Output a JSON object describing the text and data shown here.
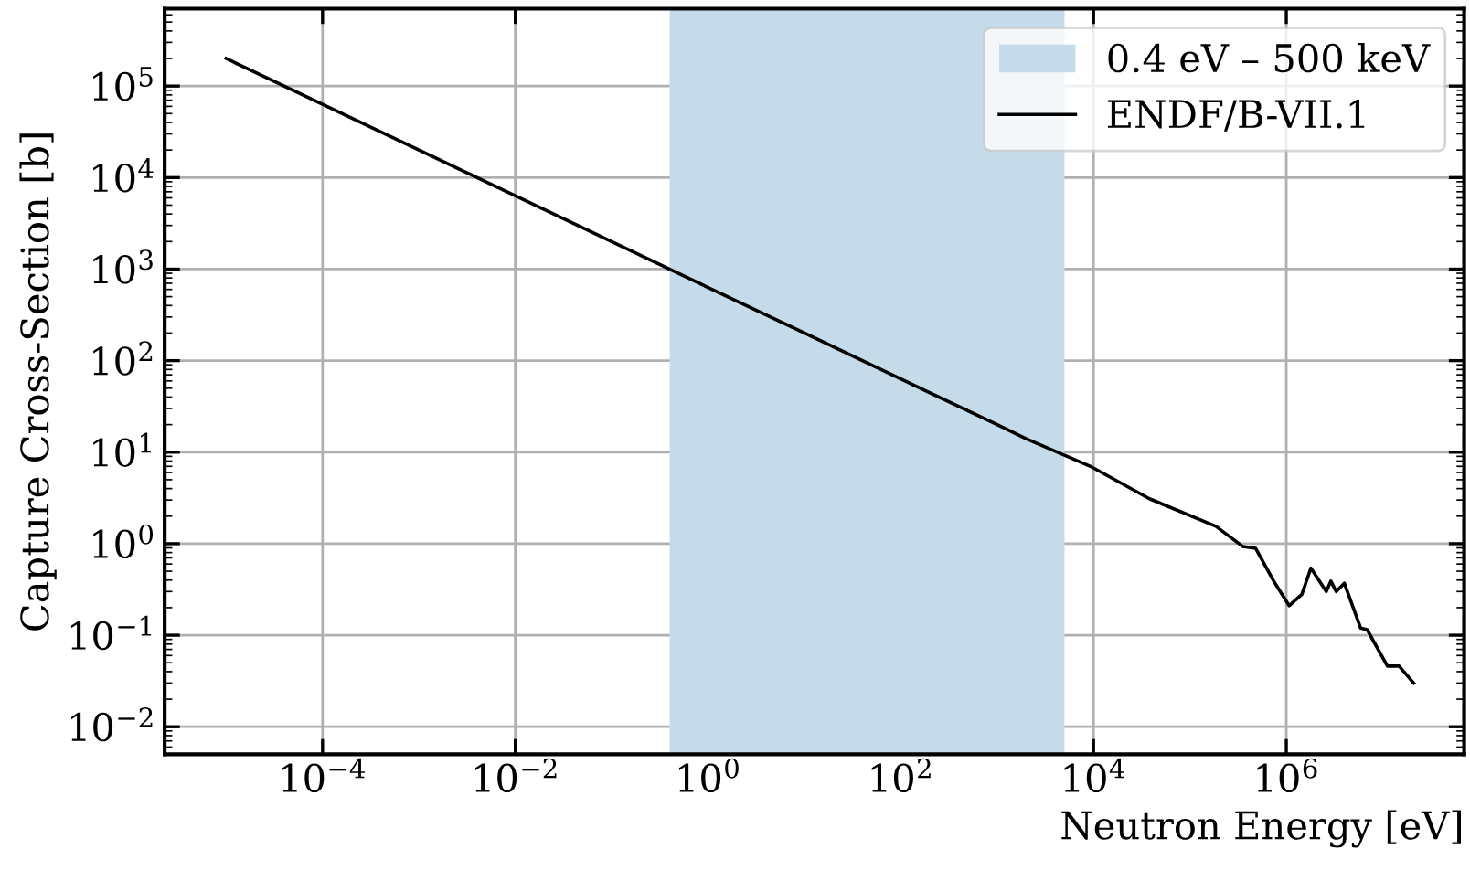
{
  "chart_data": {
    "type": "line",
    "xlabel": "Neutron Energy [eV]",
    "ylabel": "Capture Cross-Section [b]",
    "log": "xy",
    "grid": true,
    "legend": "top right",
    "line_style": "solid",
    "marker": "none",
    "xlim": [
      2.3e-06,
      70000000.0
    ],
    "ylim": [
      0.005,
      700000
    ],
    "xticks": [
      {
        "value": 0.0001,
        "label": "10$^{−4}$"
      },
      {
        "value": 0.01,
        "label": "10$^{−2}$"
      },
      {
        "value": 1,
        "label": "10$^{0}$"
      },
      {
        "value": 100,
        "label": "10$^{2}$"
      },
      {
        "value": 10000,
        "label": "10$^{4}$"
      },
      {
        "value": 1000000,
        "label": "10$^{6}$"
      }
    ],
    "yticks": [
      {
        "value": 0.01,
        "label": "10$^{−2}$"
      },
      {
        "value": 0.1,
        "label": "10$^{−1}$"
      },
      {
        "value": 1,
        "label": "10$^{0}$"
      },
      {
        "value": 10,
        "label": "10$^{1}$"
      },
      {
        "value": 100,
        "label": "10$^{2}$"
      },
      {
        "value": 1000,
        "label": "10$^{3}$"
      },
      {
        "value": 10000,
        "label": "10$^{4}$"
      },
      {
        "value": 100000,
        "label": "10$^{5}$"
      }
    ],
    "series": [
      {
        "name": "ENDF/B-VII.1",
        "color": "#000000",
        "x": [
          1e-05,
          0.001,
          0.1,
          1,
          10,
          100,
          1000,
          2000,
          9300,
          38000,
          186000,
          355000,
          480000,
          740000,
          1070000,
          1450000,
          1800000,
          2600000,
          2900000,
          3300000,
          4000000,
          5900000,
          6900000,
          11200000,
          14800000,
          21000000
        ],
        "values": [
          200000,
          20000,
          2000,
          630,
          200,
          63,
          20,
          14,
          7,
          3.1,
          1.55,
          0.93,
          0.89,
          0.39,
          0.21,
          0.28,
          0.54,
          0.3,
          0.39,
          0.3,
          0.37,
          0.12,
          0.115,
          0.046,
          0.046,
          0.03
        ]
      }
    ],
    "bands": [
      {
        "axis": "x",
        "from": 0.4,
        "to": 5000,
        "label": "0.4 eV – 500 keV",
        "color": "#c6dbea"
      }
    ]
  }
}
